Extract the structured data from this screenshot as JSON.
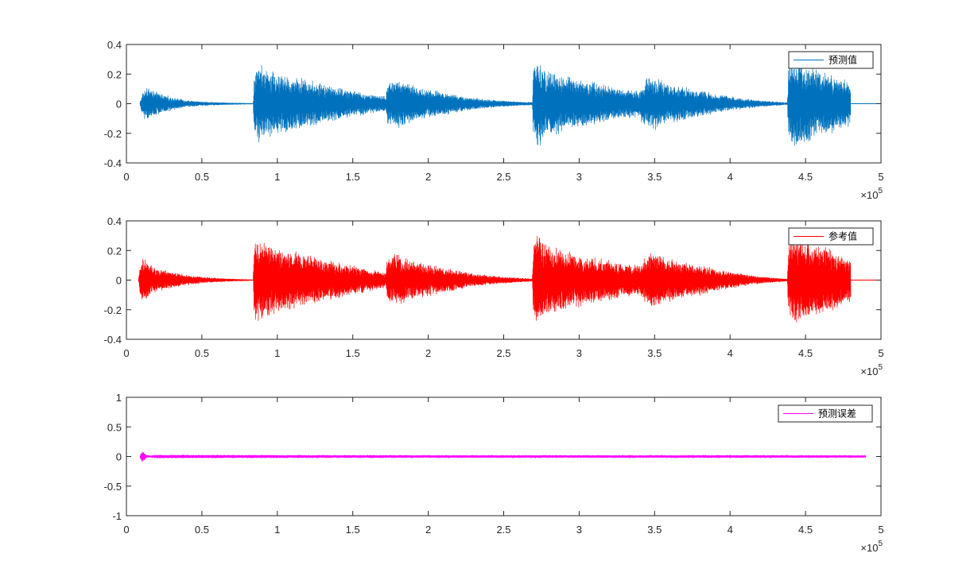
{
  "chart_data": [
    {
      "type": "line",
      "xlim": [
        0,
        500000
      ],
      "ylim": [
        -0.4,
        0.4
      ],
      "xticks": [
        0,
        50000,
        100000,
        150000,
        200000,
        250000,
        300000,
        350000,
        400000,
        450000,
        500000
      ],
      "xtick_labels": [
        "0",
        "0.5",
        "1",
        "1.5",
        "2",
        "2.5",
        "3",
        "3.5",
        "4",
        "4.5",
        "5"
      ],
      "yticks": [
        -0.4,
        -0.2,
        0,
        0.2,
        0.4
      ],
      "ytick_labels": [
        "-0.4",
        "-0.2",
        "0",
        "0.2",
        "0.4"
      ],
      "x_exponent_base": "×10",
      "x_exponent_power": "5",
      "grid": false,
      "legend_position": "top-right",
      "series": [
        {
          "name": "预测值",
          "color": "#0072BD",
          "x_extent": [
            9000,
            498000
          ],
          "data_span": [
            9000,
            480000
          ],
          "envelope_x": [
            9000,
            10000,
            12000,
            14000,
            16000,
            20000,
            30000,
            40000,
            50000,
            60000,
            70000,
            80000,
            84000,
            84500,
            87000,
            90000,
            95000,
            100000,
            110000,
            120000,
            130000,
            140000,
            150000,
            160000,
            170000,
            172000,
            172500,
            175000,
            180000,
            185000,
            190000,
            200000,
            210000,
            220000,
            230000,
            240000,
            250000,
            260000,
            269000,
            269500,
            272000,
            275000,
            280000,
            285000,
            290000,
            300000,
            310000,
            320000,
            330000,
            340000,
            342000,
            345000,
            350000,
            355000,
            360000,
            370000,
            380000,
            390000,
            400000,
            410000,
            420000,
            430000,
            438000,
            438500,
            440000,
            445000,
            450000,
            455000,
            460000,
            465000,
            470000,
            475000,
            480000
          ],
          "envelope_y": [
            0.01,
            0.05,
            0.09,
            0.11,
            0.09,
            0.07,
            0.04,
            0.02,
            0.012,
            0.008,
            0.005,
            0.003,
            0.002,
            0.18,
            0.26,
            0.23,
            0.21,
            0.19,
            0.17,
            0.15,
            0.12,
            0.1,
            0.08,
            0.06,
            0.05,
            0.04,
            0.13,
            0.14,
            0.15,
            0.13,
            0.11,
            0.09,
            0.07,
            0.05,
            0.035,
            0.025,
            0.018,
            0.012,
            0.008,
            0.2,
            0.28,
            0.24,
            0.21,
            0.19,
            0.17,
            0.15,
            0.13,
            0.11,
            0.09,
            0.08,
            0.13,
            0.15,
            0.16,
            0.14,
            0.12,
            0.1,
            0.08,
            0.06,
            0.045,
            0.03,
            0.02,
            0.012,
            0.006,
            0.2,
            0.24,
            0.26,
            0.25,
            0.22,
            0.2,
            0.19,
            0.17,
            0.15,
            0.13
          ]
        }
      ]
    },
    {
      "type": "line",
      "xlim": [
        0,
        500000
      ],
      "ylim": [
        -0.4,
        0.4
      ],
      "xticks": [
        0,
        50000,
        100000,
        150000,
        200000,
        250000,
        300000,
        350000,
        400000,
        450000,
        500000
      ],
      "xtick_labels": [
        "0",
        "0.5",
        "1",
        "1.5",
        "2",
        "2.5",
        "3",
        "3.5",
        "4",
        "4.5",
        "5"
      ],
      "yticks": [
        -0.4,
        -0.2,
        0,
        0.2,
        0.4
      ],
      "ytick_labels": [
        "-0.4",
        "-0.2",
        "0",
        "0.2",
        "0.4"
      ],
      "x_exponent_base": "×10",
      "x_exponent_power": "5",
      "grid": false,
      "legend_position": "top-right",
      "series": [
        {
          "name": "参考值",
          "color": "#FF0000",
          "x_extent": [
            8000,
            498000
          ],
          "data_span": [
            8000,
            480000
          ],
          "envelope_x": [
            8000,
            9000,
            10000,
            12000,
            14000,
            16000,
            20000,
            30000,
            40000,
            50000,
            60000,
            70000,
            80000,
            84000,
            84500,
            87000,
            90000,
            95000,
            100000,
            110000,
            120000,
            130000,
            140000,
            150000,
            160000,
            170000,
            172000,
            172500,
            175000,
            180000,
            185000,
            190000,
            200000,
            210000,
            220000,
            230000,
            240000,
            250000,
            260000,
            269000,
            269500,
            272000,
            275000,
            280000,
            285000,
            290000,
            300000,
            310000,
            320000,
            330000,
            340000,
            342000,
            345000,
            350000,
            355000,
            360000,
            370000,
            380000,
            390000,
            400000,
            410000,
            420000,
            430000,
            438000,
            438500,
            440000,
            445000,
            450000,
            455000,
            460000,
            465000,
            470000,
            475000,
            480000
          ],
          "envelope_y": [
            0.01,
            0.08,
            0.12,
            0.14,
            0.12,
            0.09,
            0.07,
            0.05,
            0.03,
            0.02,
            0.012,
            0.007,
            0.004,
            0.002,
            0.2,
            0.28,
            0.24,
            0.22,
            0.2,
            0.18,
            0.16,
            0.13,
            0.11,
            0.09,
            0.07,
            0.05,
            0.04,
            0.13,
            0.15,
            0.16,
            0.14,
            0.12,
            0.1,
            0.08,
            0.06,
            0.04,
            0.03,
            0.02,
            0.013,
            0.008,
            0.21,
            0.29,
            0.25,
            0.22,
            0.2,
            0.18,
            0.16,
            0.14,
            0.12,
            0.1,
            0.09,
            0.13,
            0.15,
            0.17,
            0.15,
            0.13,
            0.11,
            0.09,
            0.07,
            0.05,
            0.035,
            0.022,
            0.013,
            0.006,
            0.2,
            0.25,
            0.27,
            0.26,
            0.23,
            0.21,
            0.2,
            0.18,
            0.16,
            0.14
          ]
        }
      ]
    },
    {
      "type": "line",
      "xlim": [
        0,
        500000
      ],
      "ylim": [
        -1,
        1
      ],
      "xticks": [
        0,
        50000,
        100000,
        150000,
        200000,
        250000,
        300000,
        350000,
        400000,
        450000,
        500000
      ],
      "xtick_labels": [
        "0",
        "0.5",
        "1",
        "1.5",
        "2",
        "2.5",
        "3",
        "3.5",
        "4",
        "4.5",
        "5"
      ],
      "yticks": [
        -1,
        -0.5,
        0,
        0.5,
        1
      ],
      "ytick_labels": [
        "-1",
        "-0.5",
        "0",
        "0.5",
        "1"
      ],
      "x_exponent_base": "×10",
      "x_exponent_power": "5",
      "grid": false,
      "legend_position": "top-right",
      "series": [
        {
          "name": "预测误差",
          "color": "#FF00FF",
          "x_extent": [
            9000,
            490000
          ],
          "data_span": [
            9000,
            490000
          ],
          "envelope_x": [
            9000,
            10000,
            11000,
            12000,
            13000,
            14000,
            16000,
            18000,
            20000,
            100000,
            200000,
            300000,
            400000,
            490000
          ],
          "envelope_y": [
            0.01,
            0.08,
            0.07,
            0.05,
            0.03,
            0.02,
            0.015,
            0.02,
            0.025,
            0.022,
            0.02,
            0.02,
            0.02,
            0.018
          ]
        }
      ]
    }
  ]
}
